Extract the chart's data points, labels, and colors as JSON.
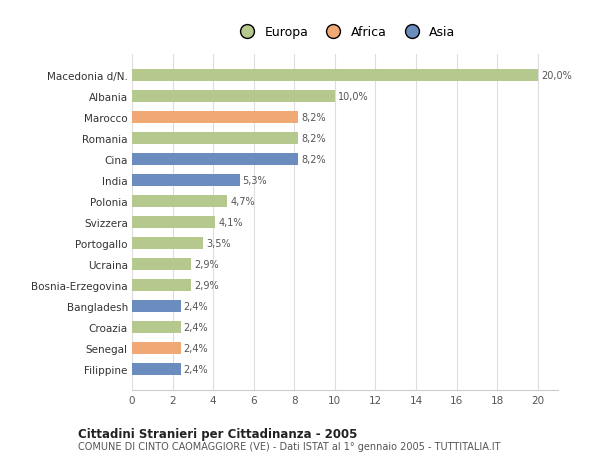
{
  "categories": [
    "Macedonia d/N.",
    "Albania",
    "Marocco",
    "Romania",
    "Cina",
    "India",
    "Polonia",
    "Svizzera",
    "Portogallo",
    "Ucraina",
    "Bosnia-Erzegovina",
    "Bangladesh",
    "Croazia",
    "Senegal",
    "Filippine"
  ],
  "values": [
    20.0,
    10.0,
    8.2,
    8.2,
    8.2,
    5.3,
    4.7,
    4.1,
    3.5,
    2.9,
    2.9,
    2.4,
    2.4,
    2.4,
    2.4
  ],
  "labels": [
    "20,0%",
    "10,0%",
    "8,2%",
    "8,2%",
    "8,2%",
    "5,3%",
    "4,7%",
    "4,1%",
    "3,5%",
    "2,9%",
    "2,9%",
    "2,4%",
    "2,4%",
    "2,4%",
    "2,4%"
  ],
  "continents": [
    "Europa",
    "Europa",
    "Africa",
    "Europa",
    "Asia",
    "Asia",
    "Europa",
    "Europa",
    "Europa",
    "Europa",
    "Europa",
    "Asia",
    "Europa",
    "Africa",
    "Asia"
  ],
  "colors": {
    "Europa": "#b5c98e",
    "Africa": "#f0a875",
    "Asia": "#6b8cbf"
  },
  "legend": [
    "Europa",
    "Africa",
    "Asia"
  ],
  "legend_colors": [
    "#b5c98e",
    "#f0a875",
    "#6b8cbf"
  ],
  "xlim": [
    0,
    21
  ],
  "xticks": [
    0,
    2,
    4,
    6,
    8,
    10,
    12,
    14,
    16,
    18,
    20
  ],
  "title_bold": "Cittadini Stranieri per Cittadinanza - 2005",
  "title_sub": "COMUNE DI CINTO CAOMAGGIORE (VE) - Dati ISTAT al 1° gennaio 2005 - TUTTITALIA.IT",
  "background_color": "#ffffff",
  "bar_height": 0.55
}
